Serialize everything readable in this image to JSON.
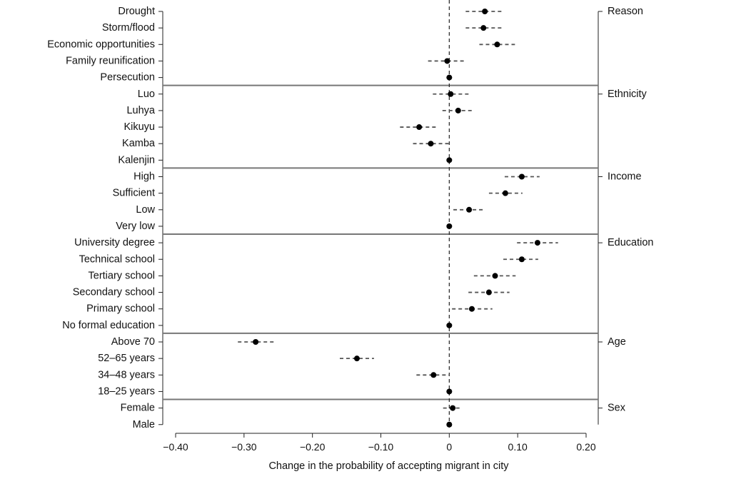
{
  "chart_data": {
    "type": "scatter",
    "subtype": "coefficient-plot",
    "title": "",
    "xlabel": "Change in the probability of accepting migrant in city",
    "ylabel": "",
    "xlim": [
      -0.4,
      0.2
    ],
    "xticks": [
      -0.4,
      -0.3,
      -0.2,
      -0.1,
      0,
      0.1,
      0.2
    ],
    "xtick_labels": [
      "−0.40",
      "−0.30",
      "−0.20",
      "−0.10",
      "0",
      "0.10",
      "0.20"
    ],
    "reference_line": 0,
    "grid": false,
    "marker_color": "#000000",
    "ci_color": "#555555",
    "groups": [
      {
        "name": "Reason",
        "items": [
          {
            "label": "Drought",
            "estimate": 0.052,
            "ci": [
              0.024,
              0.078
            ]
          },
          {
            "label": "Storm/flood",
            "estimate": 0.05,
            "ci": [
              0.024,
              0.077
            ]
          },
          {
            "label": "Economic opportunities",
            "estimate": 0.07,
            "ci": [
              0.044,
              0.096
            ]
          },
          {
            "label": "Family reunification",
            "estimate": -0.003,
            "ci": [
              -0.031,
              0.024
            ]
          },
          {
            "label": "Persecution",
            "estimate": 0,
            "ci": [
              0,
              0
            ]
          }
        ]
      },
      {
        "name": "Ethnicity",
        "items": [
          {
            "label": "Luo",
            "estimate": 0.002,
            "ci": [
              -0.024,
              0.029
            ]
          },
          {
            "label": "Luhya",
            "estimate": 0.013,
            "ci": [
              -0.01,
              0.036
            ]
          },
          {
            "label": "Kikuyu",
            "estimate": -0.044,
            "ci": [
              -0.072,
              -0.018
            ]
          },
          {
            "label": "Kamba",
            "estimate": -0.027,
            "ci": [
              -0.053,
              0.001
            ]
          },
          {
            "label": "Kalenjin",
            "estimate": 0,
            "ci": [
              0,
              0
            ]
          }
        ]
      },
      {
        "name": "Income",
        "items": [
          {
            "label": "High",
            "estimate": 0.106,
            "ci": [
              0.081,
              0.132
            ]
          },
          {
            "label": "Sufficient",
            "estimate": 0.082,
            "ci": [
              0.058,
              0.107
            ]
          },
          {
            "label": "Low",
            "estimate": 0.029,
            "ci": [
              0.006,
              0.052
            ]
          },
          {
            "label": "Very low",
            "estimate": 0,
            "ci": [
              0,
              0
            ]
          }
        ]
      },
      {
        "name": "Education",
        "items": [
          {
            "label": "University degree",
            "estimate": 0.129,
            "ci": [
              0.099,
              0.159
            ]
          },
          {
            "label": "Technical school",
            "estimate": 0.106,
            "ci": [
              0.079,
              0.13
            ]
          },
          {
            "label": "Tertiary school",
            "estimate": 0.067,
            "ci": [
              0.036,
              0.097
            ]
          },
          {
            "label": "Secondary school",
            "estimate": 0.058,
            "ci": [
              0.028,
              0.088
            ]
          },
          {
            "label": "Primary school",
            "estimate": 0.033,
            "ci": [
              0.004,
              0.063
            ]
          },
          {
            "label": "No formal education",
            "estimate": 0,
            "ci": [
              0,
              0
            ]
          }
        ]
      },
      {
        "name": "Age",
        "items": [
          {
            "label": "Above 70",
            "estimate": -0.283,
            "ci": [
              -0.309,
              -0.256
            ]
          },
          {
            "label": "52–65 years",
            "estimate": -0.135,
            "ci": [
              -0.16,
              -0.11
            ]
          },
          {
            "label": "34–48 years",
            "estimate": -0.023,
            "ci": [
              -0.048,
              0.0
            ]
          },
          {
            "label": "18–25 years",
            "estimate": 0,
            "ci": [
              0,
              0
            ]
          }
        ]
      },
      {
        "name": "Sex",
        "items": [
          {
            "label": "Female",
            "estimate": 0.005,
            "ci": [
              -0.009,
              0.019
            ]
          },
          {
            "label": "Male",
            "estimate": 0,
            "ci": [
              0,
              0
            ]
          }
        ]
      }
    ]
  }
}
